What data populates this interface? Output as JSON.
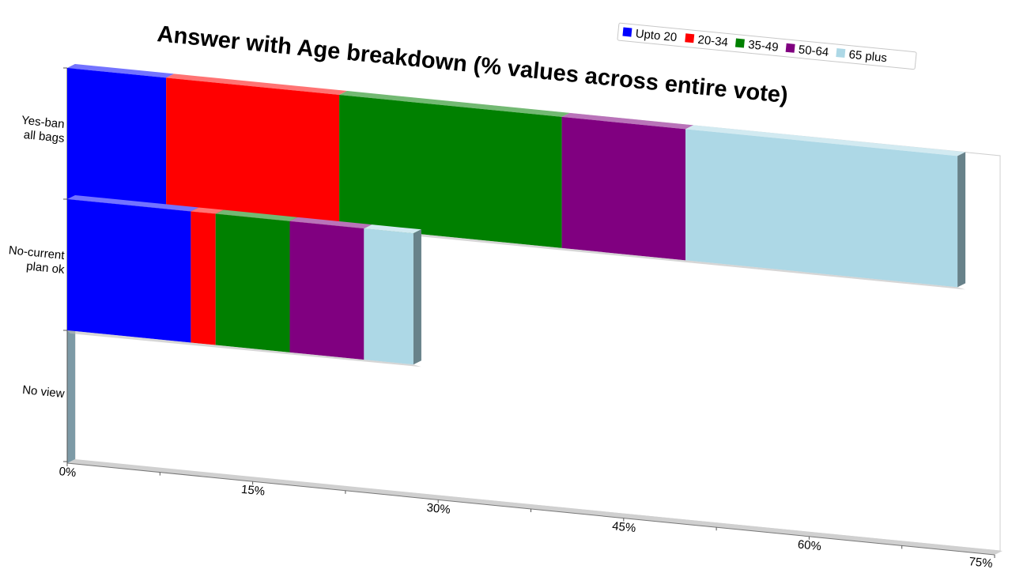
{
  "chart_data": {
    "type": "bar",
    "orientation": "horizontal",
    "stacked": true,
    "title": "Answer with Age breakdown (% values across entire vote)",
    "xlabel": "",
    "ylabel": "",
    "xlim": [
      0,
      75
    ],
    "x_ticks": [
      "0%",
      "15%",
      "30%",
      "45%",
      "60%",
      "75%"
    ],
    "grid": false,
    "legend_position": "top-right",
    "categories": [
      "Yes-ban all bags",
      "No-current plan ok",
      "No view"
    ],
    "category_lines": [
      [
        "Yes-ban",
        "all bags"
      ],
      [
        "No-current",
        "plan ok"
      ],
      [
        "No view"
      ]
    ],
    "series": [
      {
        "name": "Upto 20",
        "color": "#0000ff",
        "values": [
          8.0,
          10.0,
          0
        ]
      },
      {
        "name": "20-34",
        "color": "#ff0000",
        "values": [
          14.0,
          2.0,
          0
        ]
      },
      {
        "name": "35-49",
        "color": "#008000",
        "values": [
          18.0,
          6.0,
          0
        ]
      },
      {
        "name": "50-64",
        "color": "#800080",
        "values": [
          10.0,
          6.0,
          0
        ]
      },
      {
        "name": "65 plus",
        "color": "#add8e6",
        "values": [
          22.0,
          4.0,
          0
        ]
      }
    ]
  }
}
